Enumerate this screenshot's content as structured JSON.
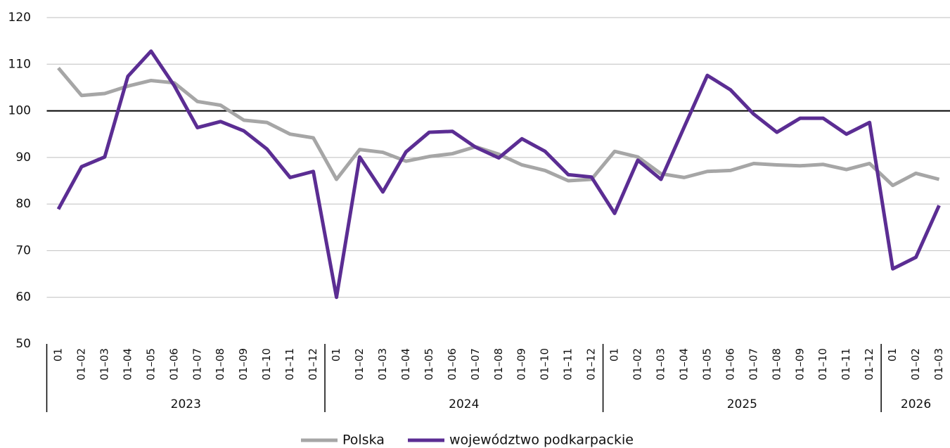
{
  "chart_data": {
    "type": "line",
    "categories": [
      "01",
      "01–02",
      "01–03",
      "01–04",
      "01–05",
      "01–06",
      "01–07",
      "01–08",
      "01–09",
      "01–10",
      "01–11",
      "01–12",
      "01",
      "01–02",
      "01–03",
      "01–04",
      "01–05",
      "01–06",
      "01–07",
      "01–08",
      "01–09",
      "01–10",
      "01–11",
      "01–12",
      "01",
      "01–02",
      "01–03",
      "01–04",
      "01–05",
      "01–06",
      "01–07",
      "01–08",
      "01–09",
      "01–10",
      "01–11",
      "01–12",
      "01",
      "01–02",
      "01–03"
    ],
    "groups": [
      "2023",
      "2024",
      "2025",
      "2026"
    ],
    "series": [
      {
        "name": "Polska",
        "color": "#a6a6a6",
        "values": [
          109.2,
          103.3,
          103.7,
          105.3,
          106.5,
          106,
          102,
          101.2,
          98,
          97.5,
          95,
          94.2,
          85.3,
          91.7,
          91.1,
          89.2,
          90.2,
          90.8,
          92.3,
          90.7,
          88.4,
          87.2,
          85,
          85.3,
          91.3,
          90.1,
          86.5,
          85.7,
          87,
          87.2,
          88.7,
          88.4,
          88.2,
          88.5,
          87.4,
          88.7,
          84,
          86.6,
          85.3
        ]
      },
      {
        "name": "województwo podkarpackie",
        "color": "#5b2d93",
        "values": [
          78.9,
          88,
          90.1,
          107.4,
          112.8,
          105.4,
          96.4,
          97.7,
          95.7,
          91.8,
          85.7,
          87,
          60,
          90.1,
          82.6,
          91.2,
          95.4,
          95.6,
          92.2,
          89.9,
          94,
          91.3,
          86.3,
          85.8,
          78,
          89.4,
          85.3,
          96.5,
          107.6,
          104.5,
          99.3,
          95.4,
          98.4,
          98.4,
          95,
          97.5,
          66.1,
          68.6,
          79.7
        ]
      }
    ],
    "ylim": [
      50,
      120
    ],
    "yticks": [
      50,
      60,
      70,
      80,
      90,
      100,
      110,
      120
    ],
    "grid": true,
    "reference_line": 100,
    "legend": "bottom"
  }
}
